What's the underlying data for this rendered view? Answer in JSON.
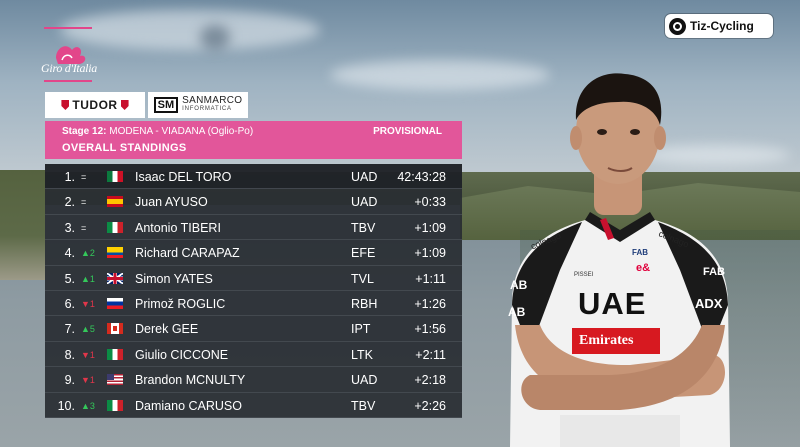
{
  "watermark": {
    "label": "Tiz-Cycling"
  },
  "giro": {
    "logo_text": "Giro d'Italia"
  },
  "sponsors": {
    "tudor": "TUDOR",
    "sanmarco_name": "SANMARCO",
    "sanmarco_sub": "INFORMATICA"
  },
  "header": {
    "stage_label": "Stage 12:",
    "stage_route": "MODENA - VIADANA (Oglio-Po)",
    "status": "PROVISIONAL",
    "title": "OVERALL STANDINGS"
  },
  "colors": {
    "accent_pink": "#e2569a",
    "panel_dark": "#282c32",
    "move_up": "#34c85a",
    "move_down": "#e0364a"
  },
  "standings": [
    {
      "rank": "1.",
      "move_dir": "eq",
      "move": "=",
      "flag": "mexico",
      "name": "Isaac DEL TORO",
      "team": "UAD",
      "time": "42:43:28"
    },
    {
      "rank": "2.",
      "move_dir": "eq",
      "move": "=",
      "flag": "spain",
      "name": "Juan AYUSO",
      "team": "UAD",
      "time": "+0:33"
    },
    {
      "rank": "3.",
      "move_dir": "eq",
      "move": "=",
      "flag": "italy",
      "name": "Antonio TIBERI",
      "team": "TBV",
      "time": "+1:09"
    },
    {
      "rank": "4.",
      "move_dir": "up",
      "move": "▲2",
      "flag": "ecuador",
      "name": "Richard CARAPAZ",
      "team": "EFE",
      "time": "+1:09"
    },
    {
      "rank": "5.",
      "move_dir": "up",
      "move": "▲1",
      "flag": "united-kingdom",
      "name": "Simon YATES",
      "team": "TVL",
      "time": "+1:11"
    },
    {
      "rank": "6.",
      "move_dir": "down",
      "move": "▼1",
      "flag": "slovenia",
      "name": "Primož ROGLIC",
      "team": "RBH",
      "time": "+1:26"
    },
    {
      "rank": "7.",
      "move_dir": "up",
      "move": "▲5",
      "flag": "canada",
      "name": "Derek GEE",
      "team": "IPT",
      "time": "+1:56"
    },
    {
      "rank": "8.",
      "move_dir": "down",
      "move": "▼1",
      "flag": "italy",
      "name": "Giulio CICCONE",
      "team": "LTK",
      "time": "+2:11"
    },
    {
      "rank": "9.",
      "move_dir": "down",
      "move": "▼1",
      "flag": "usa",
      "name": "Brandon MCNULTY",
      "team": "UAD",
      "time": "+2:18"
    },
    {
      "rank": "10.",
      "move_dir": "up",
      "move": "▲3",
      "flag": "italy",
      "name": "Damiano CARUSO",
      "team": "TBV",
      "time": "+2:26"
    }
  ],
  "jersey": {
    "brand": "UAE",
    "sponsor": "Emirates",
    "chest_left": "colnago",
    "chest_right": "colnago",
    "fab": "FAB",
    "eand": "e&",
    "pissei": "PISSEI",
    "side_left": "AB",
    "side_right": "FAB",
    "sleeve_left": "AB",
    "sleeve_right": "ADX"
  }
}
